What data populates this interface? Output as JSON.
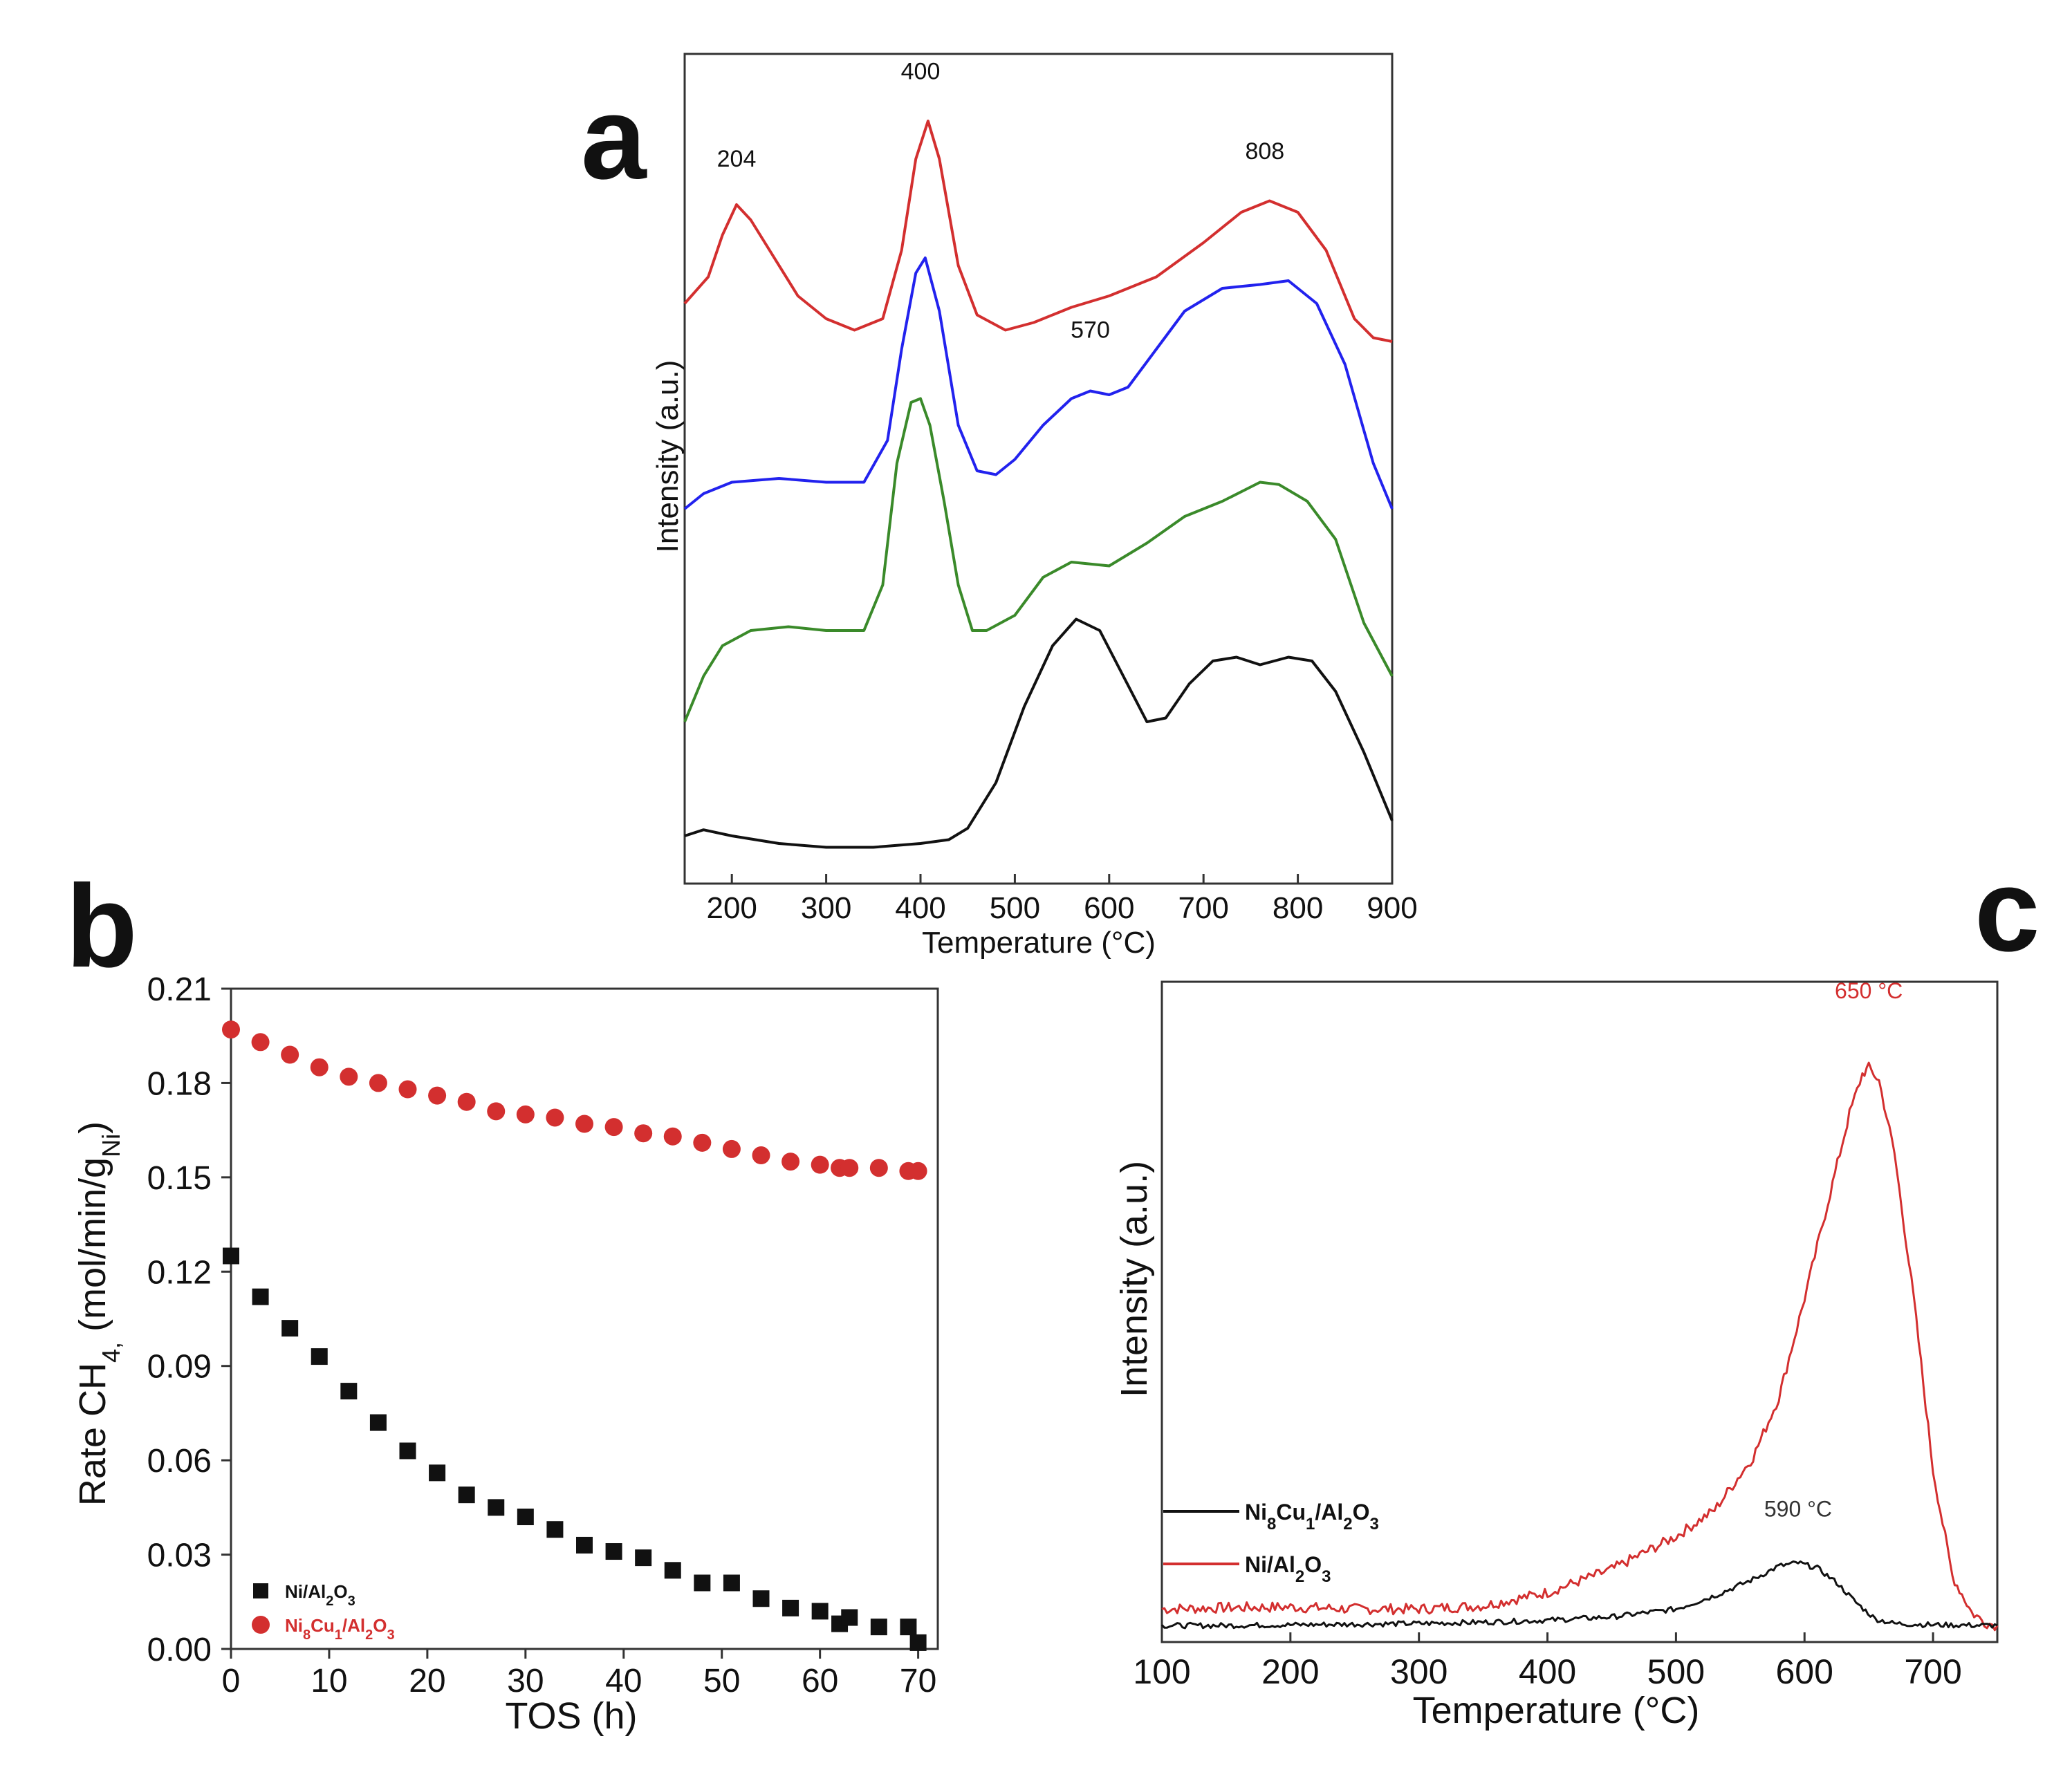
{
  "panels": {
    "a": "a",
    "b": "b",
    "c": "c"
  },
  "colors": {
    "red": "#d32f2f",
    "blue": "#2222ee",
    "green": "#3a8a2a",
    "black": "#111111",
    "axis": "#333333"
  },
  "chart_data": [
    {
      "id": "a",
      "type": "line",
      "title": "",
      "xlabel": "Temperature (°C)",
      "ylabel": "Intensity (a.u.)",
      "xlim": [
        150,
        900
      ],
      "ylim": [
        0,
        10
      ],
      "xticks": [
        200,
        300,
        400,
        500,
        600,
        700,
        800,
        900
      ],
      "annotations": [
        {
          "text": "204",
          "x": 205,
          "y": 8.9
        },
        {
          "text": "400",
          "x": 400,
          "y": 10.05
        },
        {
          "text": "808",
          "x": 765,
          "y": 9.0
        },
        {
          "text": "570",
          "x": 580,
          "y": 6.65
        }
      ],
      "series": [
        {
          "name": "red",
          "color": "#d32f2f",
          "points": [
            [
              150,
              7.1
            ],
            [
              175,
              7.45
            ],
            [
              190,
              8.0
            ],
            [
              205,
              8.4
            ],
            [
              220,
              8.2
            ],
            [
              240,
              7.8
            ],
            [
              270,
              7.2
            ],
            [
              300,
              6.9
            ],
            [
              330,
              6.75
            ],
            [
              360,
              6.9
            ],
            [
              380,
              7.8
            ],
            [
              395,
              9.0
            ],
            [
              408,
              9.5
            ],
            [
              420,
              9.0
            ],
            [
              440,
              7.6
            ],
            [
              460,
              6.95
            ],
            [
              490,
              6.75
            ],
            [
              520,
              6.85
            ],
            [
              560,
              7.05
            ],
            [
              600,
              7.2
            ],
            [
              650,
              7.45
            ],
            [
              700,
              7.9
            ],
            [
              740,
              8.3
            ],
            [
              770,
              8.45
            ],
            [
              800,
              8.3
            ],
            [
              830,
              7.8
            ],
            [
              860,
              6.9
            ],
            [
              880,
              6.65
            ],
            [
              900,
              6.6
            ]
          ]
        },
        {
          "name": "blue",
          "color": "#2222ee",
          "points": [
            [
              150,
              4.4
            ],
            [
              170,
              4.6
            ],
            [
              200,
              4.75
            ],
            [
              250,
              4.8
            ],
            [
              300,
              4.75
            ],
            [
              340,
              4.75
            ],
            [
              365,
              5.3
            ],
            [
              380,
              6.5
            ],
            [
              395,
              7.5
            ],
            [
              405,
              7.7
            ],
            [
              420,
              7.0
            ],
            [
              440,
              5.5
            ],
            [
              460,
              4.9
            ],
            [
              480,
              4.85
            ],
            [
              500,
              5.05
            ],
            [
              530,
              5.5
            ],
            [
              560,
              5.85
            ],
            [
              580,
              5.95
            ],
            [
              600,
              5.9
            ],
            [
              620,
              6.0
            ],
            [
              650,
              6.5
            ],
            [
              680,
              7.0
            ],
            [
              720,
              7.3
            ],
            [
              760,
              7.35
            ],
            [
              790,
              7.4
            ],
            [
              820,
              7.1
            ],
            [
              850,
              6.3
            ],
            [
              880,
              5.0
            ],
            [
              900,
              4.4
            ]
          ]
        },
        {
          "name": "green",
          "color": "#3a8a2a",
          "points": [
            [
              150,
              1.6
            ],
            [
              170,
              2.2
            ],
            [
              190,
              2.6
            ],
            [
              220,
              2.8
            ],
            [
              260,
              2.85
            ],
            [
              300,
              2.8
            ],
            [
              340,
              2.8
            ],
            [
              360,
              3.4
            ],
            [
              375,
              5.0
            ],
            [
              390,
              5.8
            ],
            [
              400,
              5.85
            ],
            [
              410,
              5.5
            ],
            [
              425,
              4.5
            ],
            [
              440,
              3.4
            ],
            [
              455,
              2.8
            ],
            [
              470,
              2.8
            ],
            [
              500,
              3.0
            ],
            [
              530,
              3.5
            ],
            [
              560,
              3.7
            ],
            [
              600,
              3.65
            ],
            [
              640,
              3.95
            ],
            [
              680,
              4.3
            ],
            [
              720,
              4.5
            ],
            [
              760,
              4.75
            ],
            [
              780,
              4.72
            ],
            [
              810,
              4.5
            ],
            [
              840,
              4.0
            ],
            [
              870,
              2.9
            ],
            [
              900,
              2.2
            ]
          ]
        },
        {
          "name": "black",
          "color": "#111111",
          "points": [
            [
              150,
              0.1
            ],
            [
              170,
              0.18
            ],
            [
              200,
              0.1
            ],
            [
              250,
              0.0
            ],
            [
              300,
              -0.05
            ],
            [
              350,
              -0.05
            ],
            [
              400,
              0.0
            ],
            [
              430,
              0.05
            ],
            [
              450,
              0.2
            ],
            [
              480,
              0.8
            ],
            [
              510,
              1.8
            ],
            [
              540,
              2.6
            ],
            [
              565,
              2.95
            ],
            [
              590,
              2.8
            ],
            [
              615,
              2.2
            ],
            [
              640,
              1.6
            ],
            [
              660,
              1.65
            ],
            [
              685,
              2.1
            ],
            [
              710,
              2.4
            ],
            [
              735,
              2.45
            ],
            [
              760,
              2.35
            ],
            [
              790,
              2.45
            ],
            [
              815,
              2.4
            ],
            [
              840,
              2.0
            ],
            [
              870,
              1.2
            ],
            [
              900,
              0.3
            ]
          ]
        }
      ]
    },
    {
      "id": "b",
      "type": "scatter",
      "title": "",
      "xlabel": "TOS (h)",
      "ylabel": "Rate CH₄, (mol/min/g_Ni)",
      "ylabel_parts": {
        "main": "Rate CH",
        "sub1": "4,",
        "mid": " (mol/min/g",
        "sub2": "Ni",
        "end": ")"
      },
      "xlim": [
        0,
        72
      ],
      "ylim": [
        0,
        0.21
      ],
      "xticks": [
        0,
        10,
        20,
        30,
        40,
        50,
        60,
        70
      ],
      "yticks": [
        "0.00",
        "0.03",
        "0.06",
        "0.09",
        "0.12",
        "0.15",
        "0.18",
        "0.21"
      ],
      "legend_position": "bottom-left",
      "series": [
        {
          "name": "Ni/Al2O3",
          "color": "#111111",
          "marker": "square",
          "x": [
            0,
            3,
            6,
            9,
            12,
            15,
            18,
            21,
            24,
            27,
            30,
            33,
            36,
            39,
            42,
            45,
            48,
            51,
            54,
            57,
            60,
            62,
            63,
            66,
            69,
            70
          ],
          "y": [
            0.125,
            0.112,
            0.102,
            0.093,
            0.082,
            0.072,
            0.063,
            0.056,
            0.049,
            0.045,
            0.042,
            0.038,
            0.033,
            0.031,
            0.029,
            0.025,
            0.021,
            0.021,
            0.016,
            0.013,
            0.012,
            0.008,
            0.01,
            0.007,
            0.007,
            0.002
          ]
        },
        {
          "name": "Ni8Cu1/Al2O3",
          "color": "#d32f2f",
          "marker": "circle",
          "x": [
            0,
            3,
            6,
            9,
            12,
            15,
            18,
            21,
            24,
            27,
            30,
            33,
            36,
            39,
            42,
            45,
            48,
            51,
            54,
            57,
            60,
            62,
            63,
            66,
            69,
            70
          ],
          "y": [
            0.197,
            0.193,
            0.189,
            0.185,
            0.182,
            0.18,
            0.178,
            0.176,
            0.174,
            0.171,
            0.17,
            0.169,
            0.167,
            0.166,
            0.164,
            0.163,
            0.161,
            0.159,
            0.157,
            0.155,
            0.154,
            0.153,
            0.153,
            0.153,
            0.152,
            0.152
          ]
        }
      ]
    },
    {
      "id": "c",
      "type": "line",
      "title": "",
      "xlabel": "Temperature (°C)",
      "ylabel": "Intensity (a.u.)",
      "xlim": [
        100,
        750
      ],
      "ylim": [
        0,
        1
      ],
      "xticks": [
        100,
        200,
        300,
        400,
        500,
        600,
        700
      ],
      "legend_position": "left",
      "annotations": [
        {
          "text": "650 °C",
          "x": 650,
          "y": 0.975,
          "color": "#d32f2f"
        },
        {
          "text": "590 °C",
          "x": 595,
          "y": 0.19,
          "color": "#333333"
        }
      ],
      "series": [
        {
          "name": "Ni/Al2O3",
          "color": "#d32f2f",
          "points": [
            [
              100,
              0.05
            ],
            [
              150,
              0.052
            ],
            [
              200,
              0.053
            ],
            [
              250,
              0.05
            ],
            [
              300,
              0.05
            ],
            [
              350,
              0.055
            ],
            [
              400,
              0.075
            ],
            [
              450,
              0.11
            ],
            [
              500,
              0.16
            ],
            [
              530,
              0.2
            ],
            [
              560,
              0.28
            ],
            [
              580,
              0.37
            ],
            [
              600,
              0.52
            ],
            [
              620,
              0.68
            ],
            [
              635,
              0.8
            ],
            [
              645,
              0.86
            ],
            [
              650,
              0.87
            ],
            [
              658,
              0.85
            ],
            [
              670,
              0.74
            ],
            [
              685,
              0.52
            ],
            [
              700,
              0.26
            ],
            [
              715,
              0.1
            ],
            [
              730,
              0.045
            ],
            [
              740,
              0.03
            ],
            [
              750,
              0.025
            ]
          ]
        },
        {
          "name": "Ni8Cu1/Al2O3",
          "color": "#111111",
          "points": [
            [
              100,
              0.025
            ],
            [
              150,
              0.025
            ],
            [
              200,
              0.026
            ],
            [
              250,
              0.027
            ],
            [
              300,
              0.028
            ],
            [
              350,
              0.03
            ],
            [
              400,
              0.033
            ],
            [
              450,
              0.038
            ],
            [
              500,
              0.05
            ],
            [
              530,
              0.07
            ],
            [
              560,
              0.095
            ],
            [
              580,
              0.115
            ],
            [
              595,
              0.12
            ],
            [
              610,
              0.112
            ],
            [
              625,
              0.09
            ],
            [
              640,
              0.06
            ],
            [
              655,
              0.035
            ],
            [
              670,
              0.028
            ],
            [
              700,
              0.026
            ],
            [
              750,
              0.025
            ]
          ]
        }
      ]
    }
  ]
}
